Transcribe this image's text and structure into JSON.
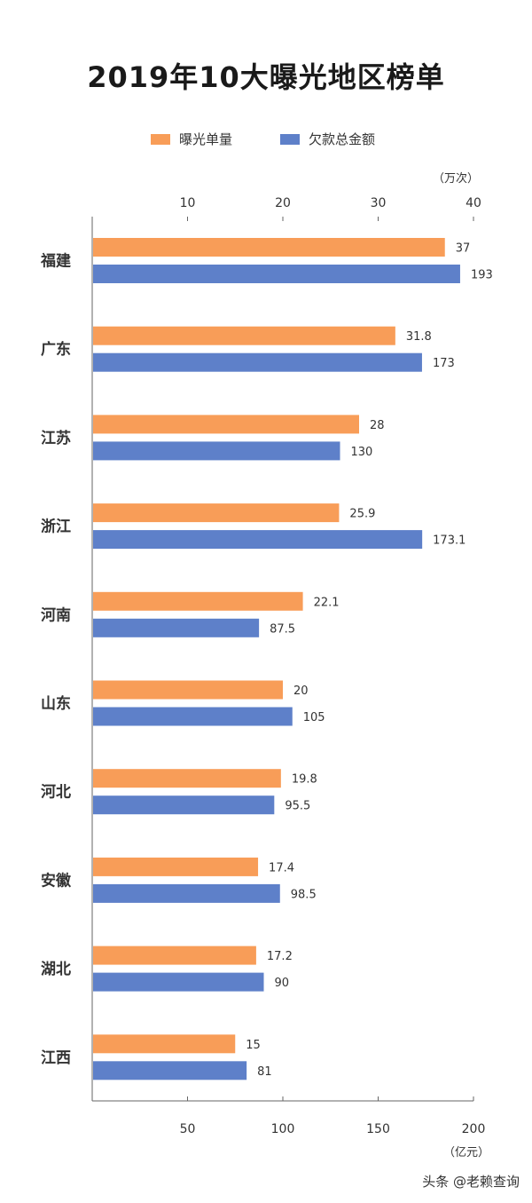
{
  "title": "2019年10大曝光地区榜单",
  "watermark": "头条 @老赖查询",
  "chart_data": {
    "type": "bar",
    "orientation": "horizontal",
    "categories": [
      "福建",
      "广东",
      "江苏",
      "浙江",
      "河南",
      "山东",
      "河北",
      "安徽",
      "湖北",
      "江西"
    ],
    "series": [
      {
        "name": "曝光单量",
        "color": "#F89D58",
        "axis": "top",
        "values": [
          37,
          31.8,
          28,
          25.9,
          22.1,
          20,
          19.8,
          17.4,
          17.2,
          15
        ],
        "labels": [
          "37",
          "31.8",
          "28",
          "25.9",
          "22.1",
          "20",
          "19.8",
          "17.4",
          "17.2",
          "15"
        ]
      },
      {
        "name": "欠款总金额",
        "color": "#5E80C9",
        "axis": "bottom",
        "values": [
          193,
          173,
          130,
          173.1,
          87.5,
          105,
          95.5,
          98.5,
          90,
          81
        ],
        "labels": [
          "193",
          "173",
          "130",
          "173.1",
          "87.5",
          "105",
          "95.5",
          "98.5",
          "90",
          "81"
        ]
      }
    ],
    "top_axis": {
      "unit": "（万次）",
      "ticks": [
        10,
        20,
        30,
        40
      ],
      "range": [
        0,
        40
      ]
    },
    "bottom_axis": {
      "unit": "（亿元）",
      "ticks": [
        50,
        100,
        150,
        200
      ],
      "range": [
        0,
        200
      ]
    }
  }
}
